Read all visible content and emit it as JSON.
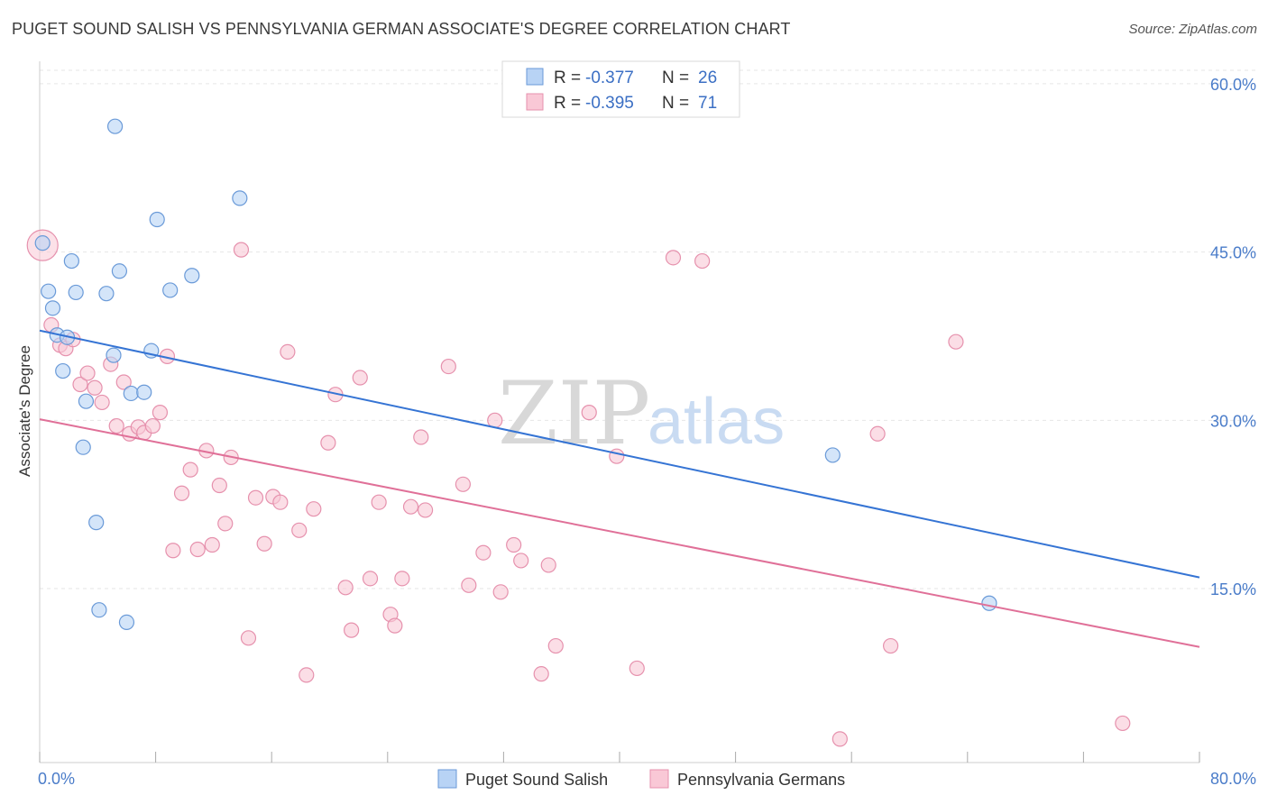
{
  "header": {
    "title": "PUGET SOUND SALISH VS PENNSYLVANIA GERMAN ASSOCIATE'S DEGREE CORRELATION CHART",
    "source": "Source: ZipAtlas.com"
  },
  "watermark": {
    "zip": "ZIP",
    "atlas": "atlas"
  },
  "colors": {
    "blue_fill": "#b8d3f5",
    "blue_stroke": "#6a9ad8",
    "blue_line": "#3574d4",
    "pink_fill": "#f9c8d6",
    "pink_stroke": "#e691ad",
    "pink_line": "#e07098",
    "tick": "#4a7cc9",
    "grid": "#e6e6e6"
  },
  "legend": {
    "rows": [
      {
        "r_label": "R = ",
        "r_value": "-0.377",
        "n_label": "N = ",
        "n_value": "26"
      },
      {
        "r_label": "R = ",
        "r_value": "-0.395",
        "n_label": "N = ",
        "n_value": "71"
      }
    ]
  },
  "chart_data": {
    "type": "scatter",
    "title": "PUGET SOUND SALISH VS PENNSYLVANIA GERMAN ASSOCIATE'S DEGREE CORRELATION CHART",
    "xlabel": "",
    "ylabel": "Associate's Degree",
    "xlim": [
      0,
      80
    ],
    "ylim": [
      -0.5,
      62
    ],
    "x_tick_labels": [
      "0.0%",
      "80.0%"
    ],
    "y_ticks": [
      15,
      30,
      45,
      60
    ],
    "y_tick_labels": [
      "15.0%",
      "30.0%",
      "45.0%",
      "60.0%"
    ],
    "grid": true,
    "legend_position": "top-center",
    "series": [
      {
        "name": "Puget Sound Salish",
        "r": -0.377,
        "n": 26,
        "trend": {
          "x": [
            0,
            80
          ],
          "y": [
            38.0,
            16.0
          ]
        },
        "points": [
          [
            0.2,
            45.8
          ],
          [
            0.6,
            41.5
          ],
          [
            0.9,
            40.0
          ],
          [
            1.2,
            37.6
          ],
          [
            1.6,
            34.4
          ],
          [
            1.9,
            37.4
          ],
          [
            2.2,
            44.2
          ],
          [
            2.5,
            41.4
          ],
          [
            3.0,
            27.6
          ],
          [
            3.2,
            31.7
          ],
          [
            3.9,
            20.9
          ],
          [
            4.1,
            13.1
          ],
          [
            4.6,
            41.3
          ],
          [
            5.1,
            35.8
          ],
          [
            5.2,
            56.2
          ],
          [
            5.5,
            43.3
          ],
          [
            6.0,
            12.0
          ],
          [
            6.3,
            32.4
          ],
          [
            7.2,
            32.5
          ],
          [
            7.7,
            36.2
          ],
          [
            8.1,
            47.9
          ],
          [
            9.0,
            41.6
          ],
          [
            10.5,
            42.9
          ],
          [
            13.8,
            49.8
          ],
          [
            54.7,
            26.9
          ],
          [
            65.5,
            13.7
          ]
        ]
      },
      {
        "name": "Pennsylvania Germans",
        "r": -0.395,
        "n": 71,
        "trend": {
          "x": [
            0,
            80
          ],
          "y": [
            30.1,
            9.8
          ]
        },
        "points": [
          [
            0.2,
            45.6
          ],
          [
            0.8,
            38.5
          ],
          [
            1.4,
            36.7
          ],
          [
            1.8,
            36.4
          ],
          [
            2.3,
            37.2
          ],
          [
            2.8,
            33.2
          ],
          [
            3.3,
            34.2
          ],
          [
            3.8,
            32.9
          ],
          [
            4.3,
            31.6
          ],
          [
            4.9,
            35.0
          ],
          [
            5.3,
            29.5
          ],
          [
            5.8,
            33.4
          ],
          [
            6.2,
            28.8
          ],
          [
            6.8,
            29.4
          ],
          [
            7.2,
            28.9
          ],
          [
            7.8,
            29.5
          ],
          [
            8.3,
            30.7
          ],
          [
            8.8,
            35.7
          ],
          [
            9.2,
            18.4
          ],
          [
            9.8,
            23.5
          ],
          [
            10.4,
            25.6
          ],
          [
            10.9,
            18.5
          ],
          [
            11.5,
            27.3
          ],
          [
            11.9,
            18.9
          ],
          [
            12.4,
            24.2
          ],
          [
            12.8,
            20.8
          ],
          [
            13.2,
            26.7
          ],
          [
            13.9,
            45.2
          ],
          [
            14.4,
            10.6
          ],
          [
            14.9,
            23.1
          ],
          [
            15.5,
            19.0
          ],
          [
            16.1,
            23.2
          ],
          [
            16.6,
            22.7
          ],
          [
            17.1,
            36.1
          ],
          [
            17.9,
            20.2
          ],
          [
            18.4,
            7.3
          ],
          [
            18.9,
            22.1
          ],
          [
            19.9,
            28.0
          ],
          [
            20.4,
            32.3
          ],
          [
            21.1,
            15.1
          ],
          [
            21.5,
            11.3
          ],
          [
            22.1,
            33.8
          ],
          [
            22.8,
            15.9
          ],
          [
            23.4,
            22.7
          ],
          [
            24.2,
            12.7
          ],
          [
            24.5,
            11.7
          ],
          [
            25.0,
            15.9
          ],
          [
            25.6,
            22.3
          ],
          [
            26.3,
            28.5
          ],
          [
            26.6,
            22.0
          ],
          [
            28.2,
            34.8
          ],
          [
            29.2,
            24.3
          ],
          [
            29.6,
            15.3
          ],
          [
            30.6,
            18.2
          ],
          [
            31.4,
            30.0
          ],
          [
            31.8,
            14.7
          ],
          [
            32.7,
            18.9
          ],
          [
            33.2,
            17.5
          ],
          [
            34.6,
            7.4
          ],
          [
            35.1,
            17.1
          ],
          [
            35.6,
            9.9
          ],
          [
            37.9,
            30.7
          ],
          [
            39.8,
            26.8
          ],
          [
            41.2,
            7.9
          ],
          [
            43.7,
            44.5
          ],
          [
            45.7,
            44.2
          ],
          [
            55.2,
            1.6
          ],
          [
            57.8,
            28.8
          ],
          [
            58.7,
            9.9
          ],
          [
            63.2,
            37.0
          ],
          [
            74.7,
            3.0
          ]
        ]
      }
    ]
  },
  "bottom_legend": [
    {
      "label": "Puget Sound Salish"
    },
    {
      "label": "Pennsylvania Germans"
    }
  ]
}
